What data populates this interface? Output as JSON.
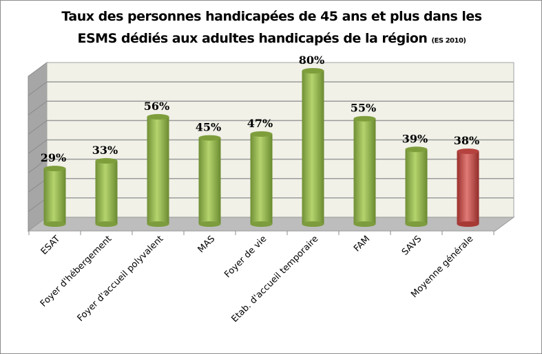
{
  "chart_data": {
    "type": "bar",
    "title_line1": "Taux des personnes handicapées de 45 ans et plus dans les",
    "title_line2": "ESMS dédiés aux adultes handicapés de la région",
    "title_note": "(ES 2010)",
    "categories": [
      "ESAT",
      "Foyer d'hébergement",
      "Foyer d'accueil polyvalent",
      "MAS",
      "Foyer de vie",
      "Etab. d'accueil temporaire",
      "FAM",
      "SAVS",
      "Moyenne générale"
    ],
    "values": [
      29,
      33,
      56,
      45,
      47,
      80,
      55,
      39,
      38
    ],
    "data_labels": [
      "29%",
      "33%",
      "56%",
      "45%",
      "47%",
      "80%",
      "55%",
      "39%",
      "38%"
    ],
    "ylim": [
      0,
      80
    ],
    "grid": true,
    "colors": {
      "bar": "#9bbb59",
      "highlight": "#c0504d"
    },
    "highlight_category": "Moyenne générale"
  }
}
